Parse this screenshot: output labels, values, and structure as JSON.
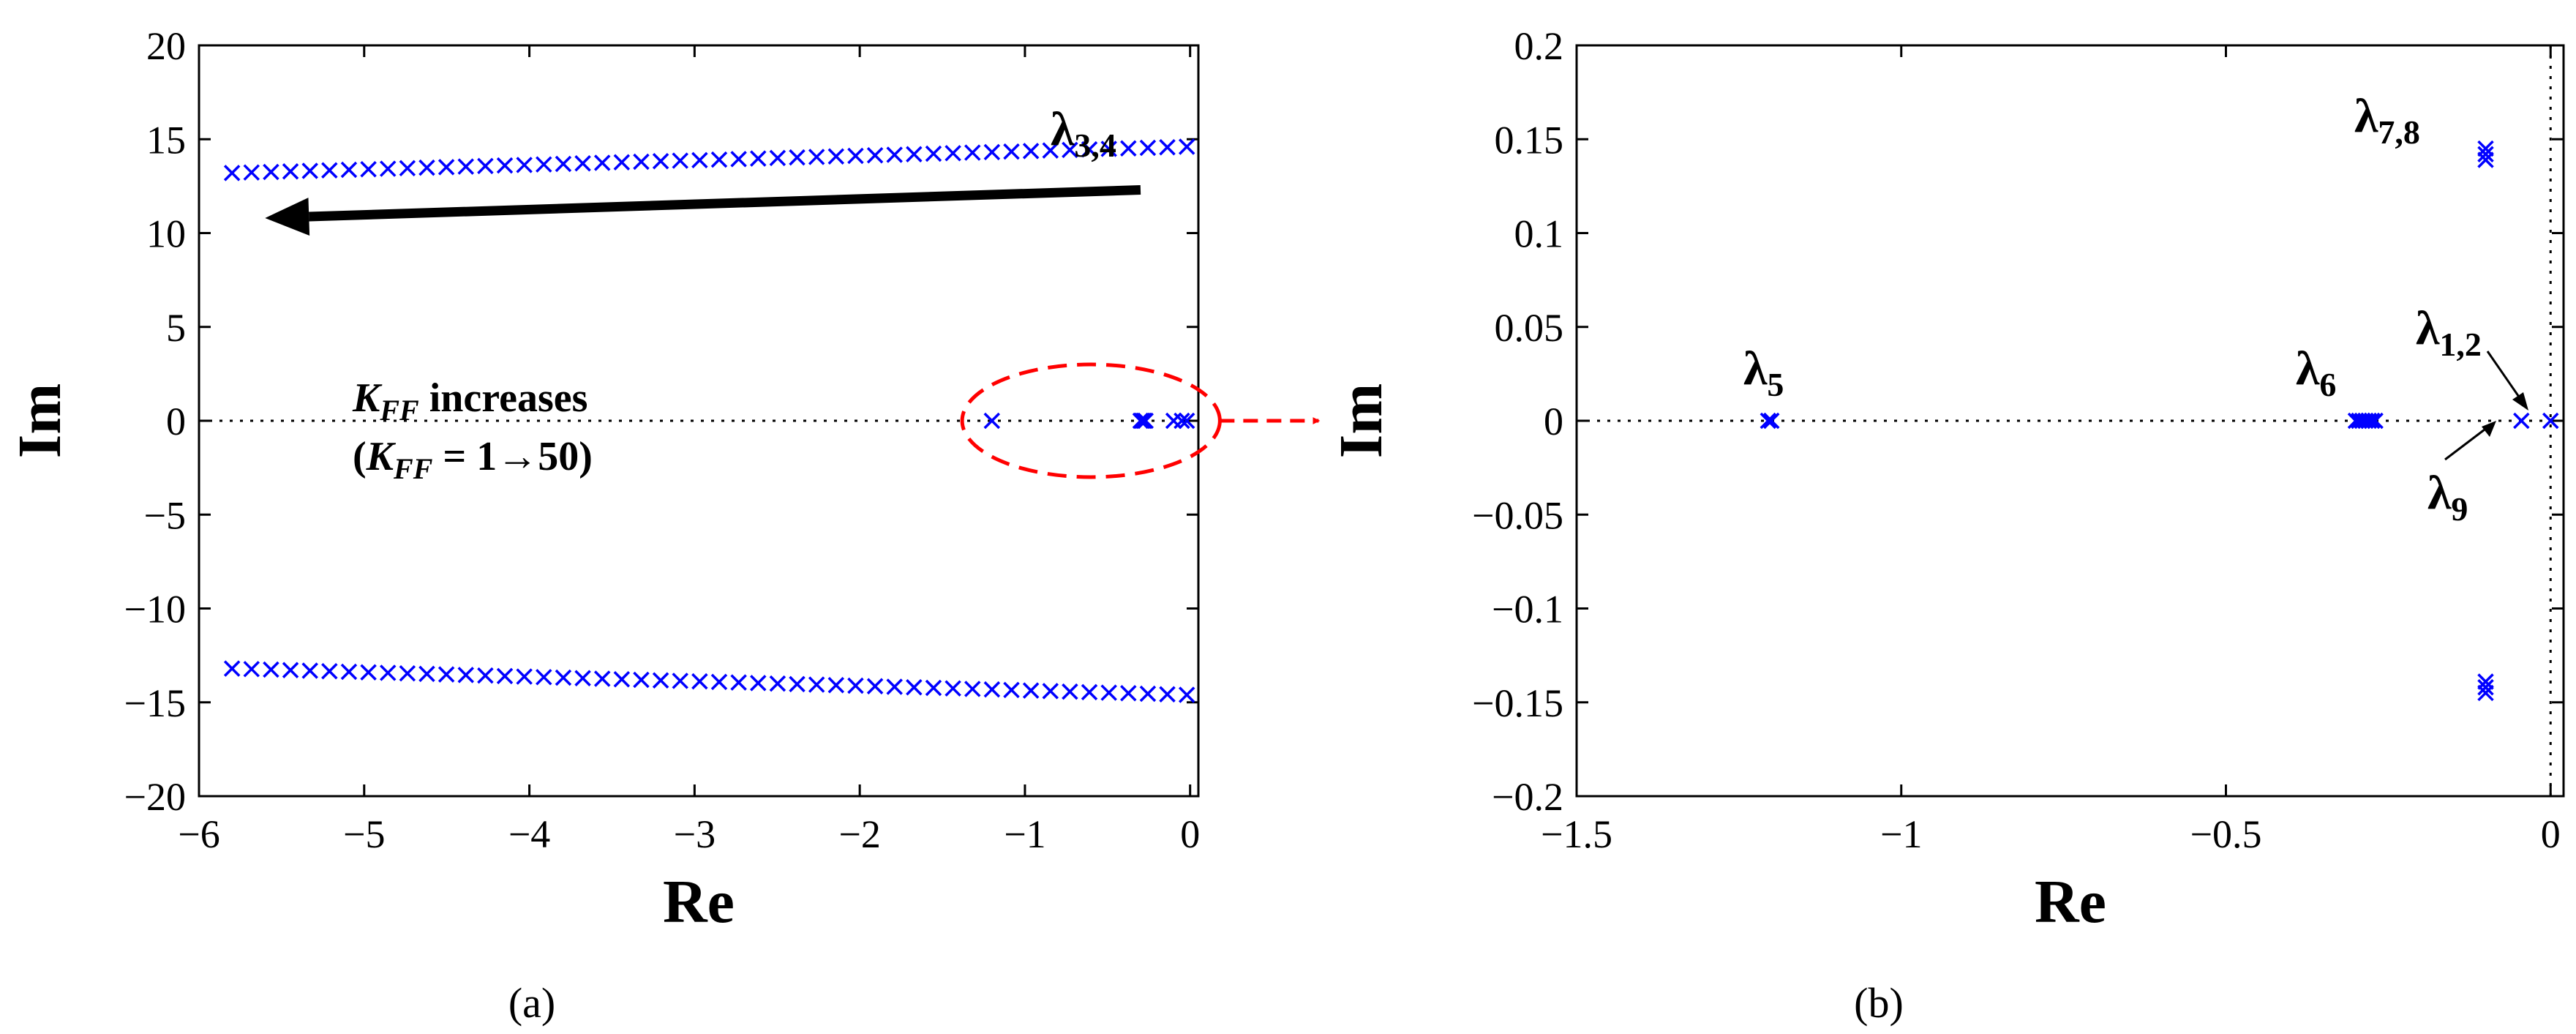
{
  "colors": {
    "marker": "#0000ff",
    "highlight": "#ff0000",
    "arrow": "#000000",
    "axis": "#000000"
  },
  "panel_a": {
    "caption": "(a)",
    "annotation": {
      "line1_var": "K",
      "line1_sub": "FF",
      "line1_rest": "increases",
      "line2_open": "(",
      "line2_var": "K",
      "line2_sub": "FF",
      "line2_rest": "= 1→50)"
    },
    "labels": [
      {
        "greek": "λ",
        "sub": "3,4"
      }
    ]
  },
  "panel_b": {
    "caption": "(b)",
    "labels": [
      {
        "greek": "λ",
        "sub": "7,8"
      },
      {
        "greek": "λ",
        "sub": "5"
      },
      {
        "greek": "λ",
        "sub": "6"
      },
      {
        "greek": "λ",
        "sub": "1,2"
      },
      {
        "greek": "λ",
        "sub": "9"
      }
    ]
  },
  "chart_data": [
    {
      "type": "scatter",
      "xlabel": "Re",
      "ylabel": "Im",
      "xlim": [
        -6,
        0.05
      ],
      "ylim": [
        -20,
        20
      ],
      "xticks": [
        -6,
        -5,
        -4,
        -3,
        -2,
        -1,
        0
      ],
      "yticks": [
        20,
        15,
        10,
        5,
        0,
        -5,
        -10,
        -15,
        -20
      ],
      "xtick_labels": [
        "−6",
        "−5",
        "−4",
        "−3",
        "−2",
        "−1",
        "0"
      ],
      "ytick_labels": [
        "20",
        "15",
        "10",
        "5",
        "0",
        "−5",
        "−10",
        "−15",
        "−20"
      ],
      "marker": "x",
      "zero_line": "horizontal dotted at Im = 0",
      "series": [
        {
          "points_spec": "50 pairs λ3,4 from K_FF = 1 (Re = -0.02, Im = ±14.6) to K_FF = 50 (Re = -5.8, Im = ±13.2)",
          "re_start": -0.02,
          "re_end": -5.8,
          "im_start": 14.6,
          "im_end": 13.2,
          "count": 50
        }
      ],
      "real_axis_points": [
        -1.2,
        -0.3,
        -0.29,
        -0.28,
        -0.27,
        -0.1,
        -0.05,
        -0.02
      ],
      "direction_arrow": {
        "from": [
          -0.3,
          12.3
        ],
        "to": [
          -5.6,
          10.8
        ]
      },
      "highlight_ellipse": {
        "center": [
          -0.6,
          0
        ],
        "rx_data": 0.78,
        "ry_data": 3.0
      }
    },
    {
      "type": "scatter",
      "xlabel": "Re",
      "ylabel": "Im",
      "xlim": [
        -1.5,
        0.02
      ],
      "ylim": [
        -0.2,
        0.2
      ],
      "xticks": [
        -1.5,
        -1,
        -0.5,
        0
      ],
      "yticks": [
        0.2,
        0.15,
        0.1,
        0.05,
        0,
        -0.05,
        -0.1,
        -0.15,
        -0.2
      ],
      "xtick_labels": [
        "−1.5",
        "−1",
        "−0.5",
        "0"
      ],
      "ytick_labels": [
        "0.2",
        "0.15",
        "0.1",
        "0.05",
        "0",
        "−0.05",
        "−0.1",
        "−0.15",
        "−0.2"
      ],
      "marker": "x",
      "zero_lines": "horizontal dotted at Im = 0, vertical dotted at Re = 0",
      "points": [
        {
          "re": -0.1,
          "im": 0.145
        },
        {
          "re": -0.1,
          "im": 0.142
        },
        {
          "re": -0.1,
          "im": 0.139
        },
        {
          "re": -0.1,
          "im": -0.145
        },
        {
          "re": -0.1,
          "im": -0.142
        },
        {
          "re": -0.1,
          "im": -0.139
        },
        {
          "re": -1.2,
          "im": 0
        },
        {
          "re": -1.205,
          "im": 0
        },
        {
          "re": -0.3,
          "im": 0
        },
        {
          "re": -0.295,
          "im": 0
        },
        {
          "re": -0.29,
          "im": 0
        },
        {
          "re": -0.285,
          "im": 0
        },
        {
          "re": -0.28,
          "im": 0
        },
        {
          "re": -0.275,
          "im": 0
        },
        {
          "re": -0.27,
          "im": 0
        },
        {
          "re": -0.045,
          "im": 0
        },
        {
          "re": 0,
          "im": 0
        }
      ]
    }
  ]
}
